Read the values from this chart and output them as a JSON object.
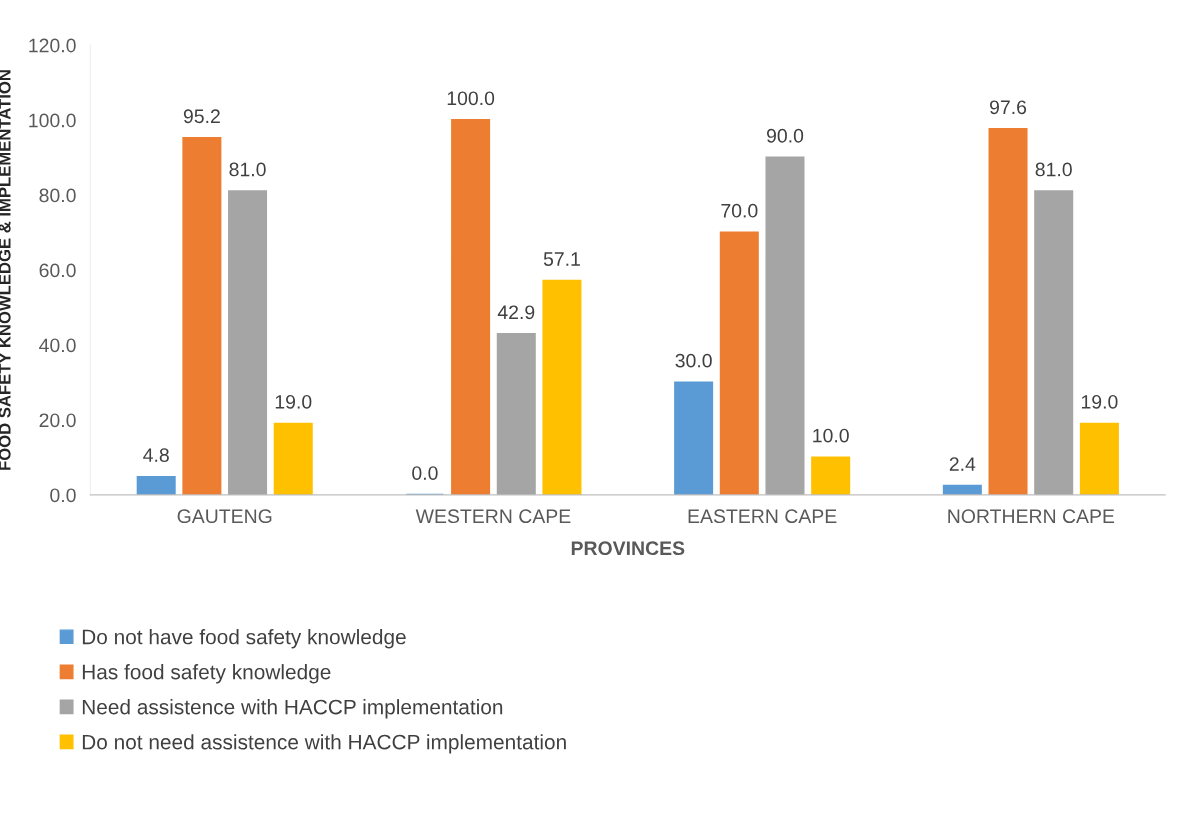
{
  "chart_data": {
    "type": "bar",
    "xlabel": "PROVINCES",
    "ylabel": "FOOD SAFETY KNOWLEDGE & IMPLEMENTATION",
    "categories": [
      "GAUTENG",
      "WESTERN CAPE",
      "EASTERN CAPE",
      "NORTHERN CAPE"
    ],
    "series": [
      {
        "name": "Do not have food safety knowledge",
        "color": "#5b9bd5",
        "values": [
          4.8,
          0.0,
          30.0,
          2.4
        ],
        "value_labels": [
          "4.8",
          "0.0",
          "30.0",
          "2.4"
        ]
      },
      {
        "name": "Has food safety knowledge",
        "color": "#ed7d31",
        "values": [
          95.2,
          100.0,
          70.0,
          97.6
        ],
        "value_labels": [
          "95.2",
          "100.0",
          "70.0",
          "97.6"
        ]
      },
      {
        "name": "Need assistence with HACCP implementation",
        "color": "#a5a5a5",
        "values": [
          81.0,
          42.9,
          90.0,
          81.0
        ],
        "value_labels": [
          "81.0",
          "42.9",
          "90.0",
          "81.0"
        ]
      },
      {
        "name": "Do not need assistence with HACCP implementation",
        "color": "#ffc000",
        "values": [
          19.0,
          57.1,
          10.0,
          19.0
        ],
        "value_labels": [
          "19.0",
          "57.1",
          "10.0",
          "19.0"
        ]
      }
    ],
    "ylim": [
      0,
      120
    ],
    "yticks": [
      {
        "value": 0,
        "label": "0.0"
      },
      {
        "value": 20,
        "label": "20.0"
      },
      {
        "value": 40,
        "label": "40.0"
      },
      {
        "value": 60,
        "label": "60.0"
      },
      {
        "value": 80,
        "label": "80.0"
      },
      {
        "value": 100,
        "label": "100.0"
      },
      {
        "value": 120,
        "label": "120.0"
      }
    ],
    "grid": false,
    "legend": "bottom"
  }
}
